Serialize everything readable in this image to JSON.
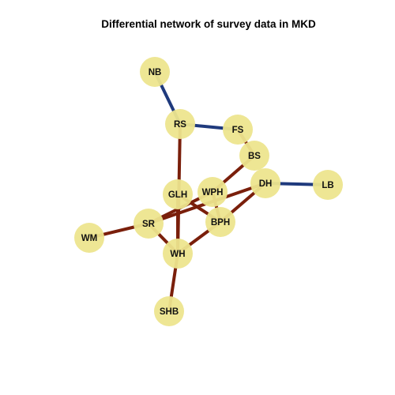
{
  "title": "Differential network of survey data in MKD",
  "colors": {
    "background": "#ffffff",
    "node_fill": "#ede58e",
    "label": "#111111",
    "edge_positive": "#1f3a7d",
    "edge_negative": "#7a1f0b"
  },
  "nodes": [
    {
      "id": "NB",
      "label": "NB"
    },
    {
      "id": "RS",
      "label": "RS"
    },
    {
      "id": "FS",
      "label": "FS"
    },
    {
      "id": "BS",
      "label": "BS"
    },
    {
      "id": "DH",
      "label": "DH"
    },
    {
      "id": "LB",
      "label": "LB"
    },
    {
      "id": "GLH",
      "label": "GLH"
    },
    {
      "id": "WPH",
      "label": "WPH"
    },
    {
      "id": "BPH",
      "label": "BPH"
    },
    {
      "id": "SR",
      "label": "SR"
    },
    {
      "id": "WM",
      "label": "WM"
    },
    {
      "id": "WH",
      "label": "WH"
    },
    {
      "id": "SHB",
      "label": "SHB"
    }
  ],
  "edges": [
    {
      "source": "NB",
      "target": "RS",
      "sign": "positive"
    },
    {
      "source": "RS",
      "target": "FS",
      "sign": "positive"
    },
    {
      "source": "DH",
      "target": "LB",
      "sign": "positive"
    },
    {
      "source": "FS",
      "target": "BS",
      "sign": "negative"
    },
    {
      "source": "RS",
      "target": "WH",
      "sign": "negative"
    },
    {
      "source": "BS",
      "target": "WPH",
      "sign": "negative"
    },
    {
      "source": "WPH",
      "target": "BPH",
      "sign": "negative"
    },
    {
      "source": "GLH",
      "target": "BPH",
      "sign": "negative"
    },
    {
      "source": "DH",
      "target": "BPH",
      "sign": "negative"
    },
    {
      "source": "SR",
      "target": "DH",
      "sign": "negative"
    },
    {
      "source": "SR",
      "target": "WPH",
      "sign": "negative"
    },
    {
      "source": "SR",
      "target": "WM",
      "sign": "negative"
    },
    {
      "source": "SR",
      "target": "WH",
      "sign": "negative"
    },
    {
      "source": "GLH",
      "target": "WH",
      "sign": "negative"
    },
    {
      "source": "BPH",
      "target": "WH",
      "sign": "negative"
    },
    {
      "source": "WH",
      "target": "SHB",
      "sign": "negative"
    }
  ]
}
